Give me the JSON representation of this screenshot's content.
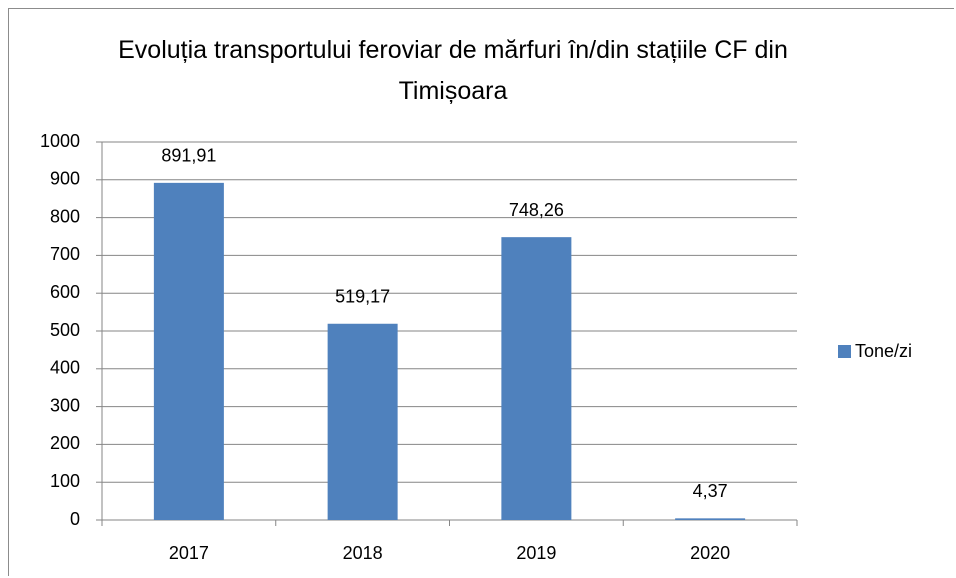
{
  "chart_data": {
    "type": "bar",
    "title": "Evoluția transportului feroviar de mărfuri în/din stațiile CF din Timișoara",
    "categories": [
      "2017",
      "2018",
      "2019",
      "2020"
    ],
    "series": [
      {
        "name": "Tone/zi",
        "color": "#4f81bd",
        "values": [
          891.91,
          519.17,
          748.26,
          4.37
        ],
        "value_labels": [
          "891,91",
          "519,17",
          "748,26",
          "4,37"
        ]
      }
    ],
    "ylim": [
      0,
      1000
    ],
    "yticks": [
      0,
      100,
      200,
      300,
      400,
      500,
      600,
      700,
      800,
      900,
      1000
    ],
    "grid": true,
    "legend": "right"
  }
}
